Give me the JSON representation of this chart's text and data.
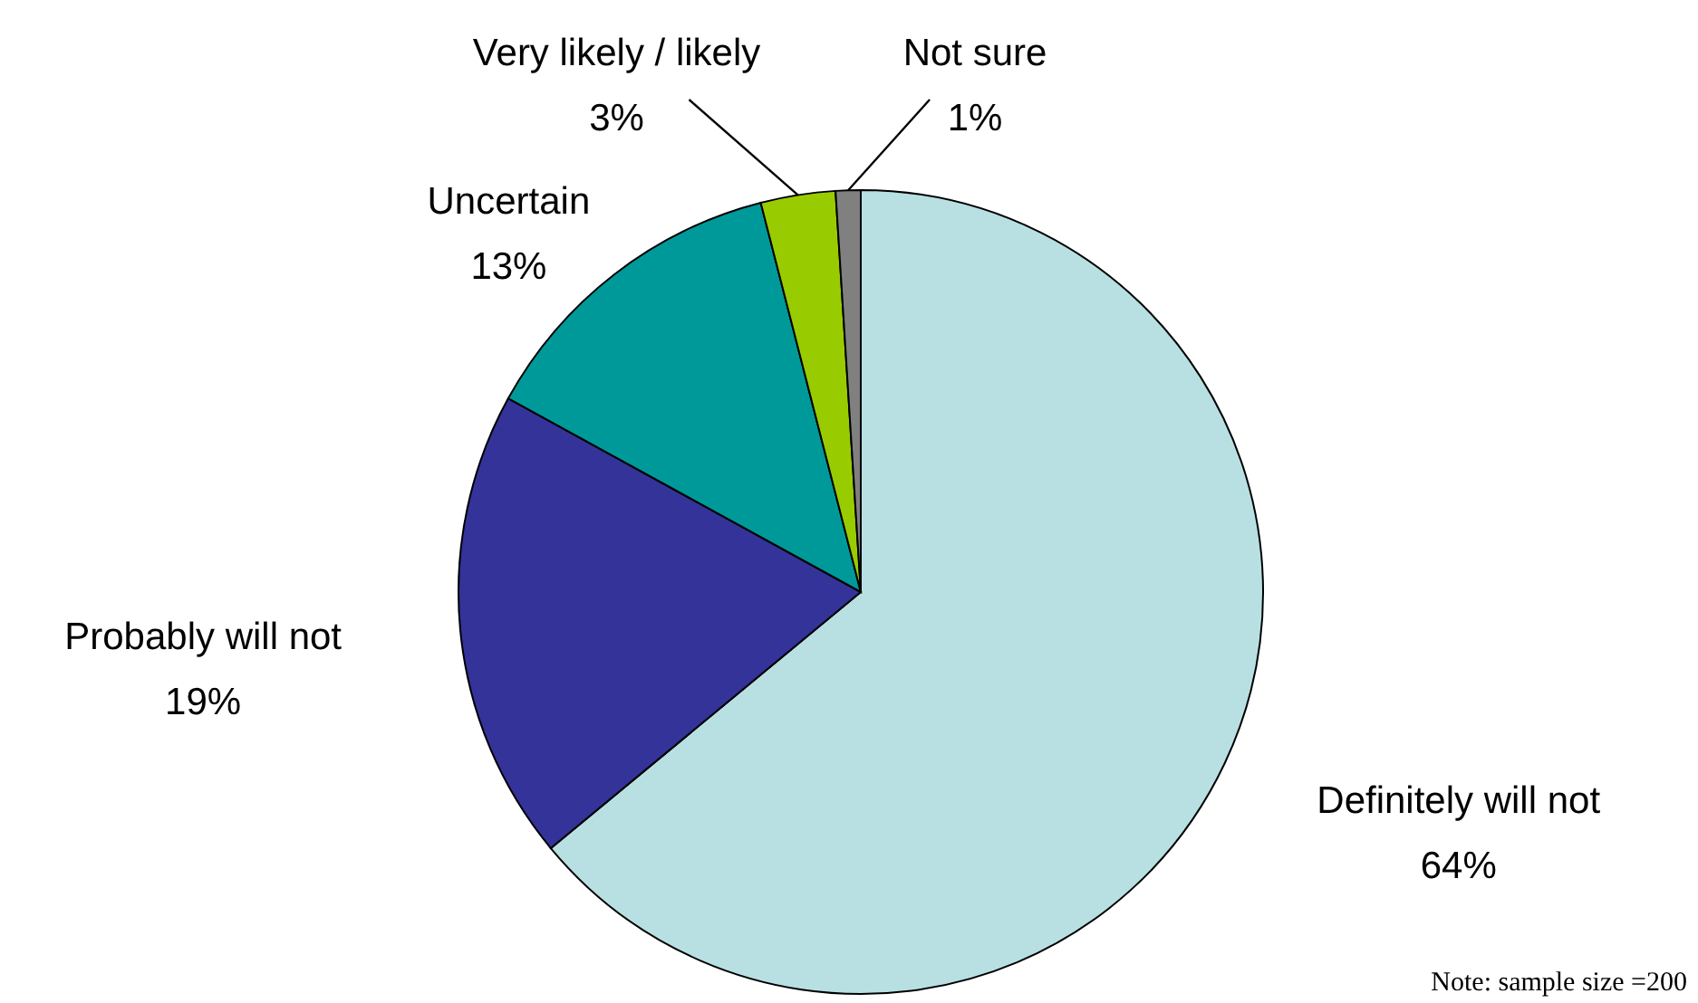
{
  "chart_data": {
    "type": "pie",
    "categories": [
      "Definitely will not",
      "Probably will not",
      "Uncertain",
      "Very likely / likely",
      "Not sure"
    ],
    "values": [
      64,
      19,
      13,
      3,
      1
    ],
    "value_labels": [
      "64%",
      "19%",
      "13%",
      "3%",
      "1%"
    ],
    "colors": [
      "#b8e0e3",
      "#333399",
      "#009999",
      "#99cc00",
      "#808080"
    ],
    "annotations": [
      "Note: sample size =200"
    ]
  }
}
